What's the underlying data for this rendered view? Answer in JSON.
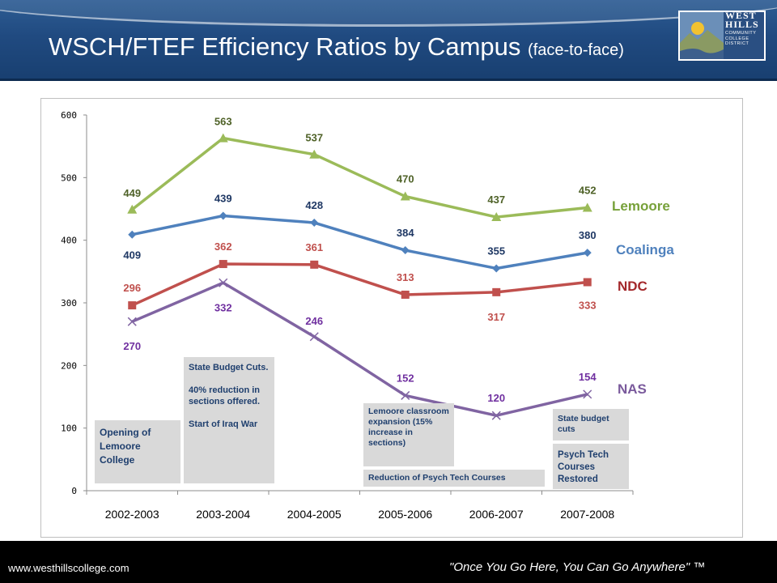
{
  "header": {
    "title": "WSCH/FTEF Efficiency Ratios by Campus",
    "title_suffix": "(face-to-face)",
    "logo_text": "WEST HILLS",
    "logo_subtext": "COMMUNITY COLLEGE DISTRICT"
  },
  "footer": {
    "url": "www.westhillscollege.com",
    "tagline": "\"Once You Go Here, You Can Go Anywhere\" ™"
  },
  "chart_data": {
    "type": "line",
    "categories": [
      "2002-2003",
      "2003-2004",
      "2004-2005",
      "2005-2006",
      "2006-2007",
      "2007-2008"
    ],
    "ylim": [
      0,
      600
    ],
    "yticks": [
      0,
      100,
      200,
      300,
      400,
      500,
      600
    ],
    "grid": false,
    "series": [
      {
        "name": "Lemoore",
        "values": [
          449,
          563,
          537,
          470,
          437,
          452
        ],
        "color": "#9bbb59",
        "label_color": "#4f6228",
        "marker": "triangle"
      },
      {
        "name": "Coalinga",
        "values": [
          409,
          439,
          428,
          384,
          355,
          380
        ],
        "color": "#4f81bd",
        "label_color": "#1f3864",
        "marker": "diamond"
      },
      {
        "name": "NDC",
        "values": [
          296,
          362,
          361,
          313,
          317,
          333
        ],
        "color": "#c0504d",
        "label_color": "#c0504d",
        "marker": "square"
      },
      {
        "name": "NAS",
        "values": [
          270,
          332,
          246,
          152,
          120,
          154
        ],
        "color": "#8064a2",
        "label_color": "#7030a0",
        "marker": "x"
      }
    ]
  },
  "annotations": [
    "Opening of Lemoore College",
    "State Budget Cuts.\n\n40% reduction in sections offered.\n\nStart of Iraq War",
    "Lemoore classroom expansion (15% increase in sections)",
    "Reduction of Psych Tech Courses",
    "State budget cuts",
    "Psych Tech Courses Restored"
  ]
}
